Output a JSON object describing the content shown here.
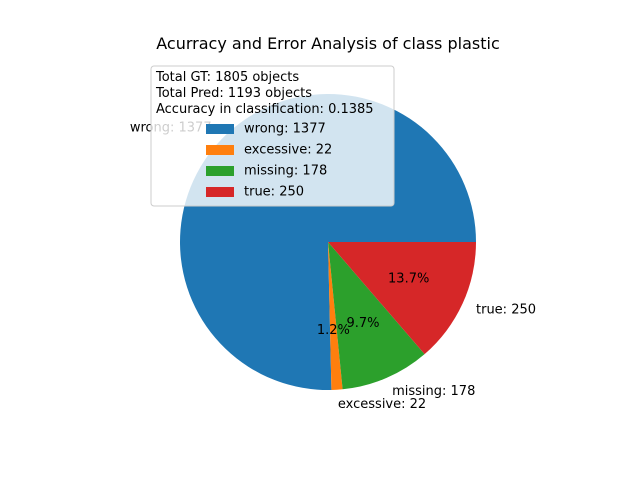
{
  "chart_data": {
    "type": "pie",
    "title": "Acurracy and Error Analysis of class plastic",
    "categories": [
      "wrong",
      "excessive",
      "missing",
      "true"
    ],
    "values": [
      1377,
      22,
      178,
      250
    ],
    "slice_labels": [
      "wrong: 1377",
      "excessive: 22",
      "missing: 178",
      "true: 250"
    ],
    "pct_labels": [
      "",
      "1.2%",
      "9.7%",
      "13.7%"
    ],
    "colors": [
      "#1f77b4",
      "#ff7f0e",
      "#2ca02c",
      "#d62728"
    ],
    "legend": {
      "placement": "upper-left",
      "header_lines": [
        "Total GT: 1805 objects",
        "Total Pred: 1193 objects",
        "Accuracy in classification: 0.1385"
      ],
      "entries": [
        "wrong: 1377",
        "excessive: 22",
        "missing: 178",
        "true: 250"
      ]
    }
  }
}
